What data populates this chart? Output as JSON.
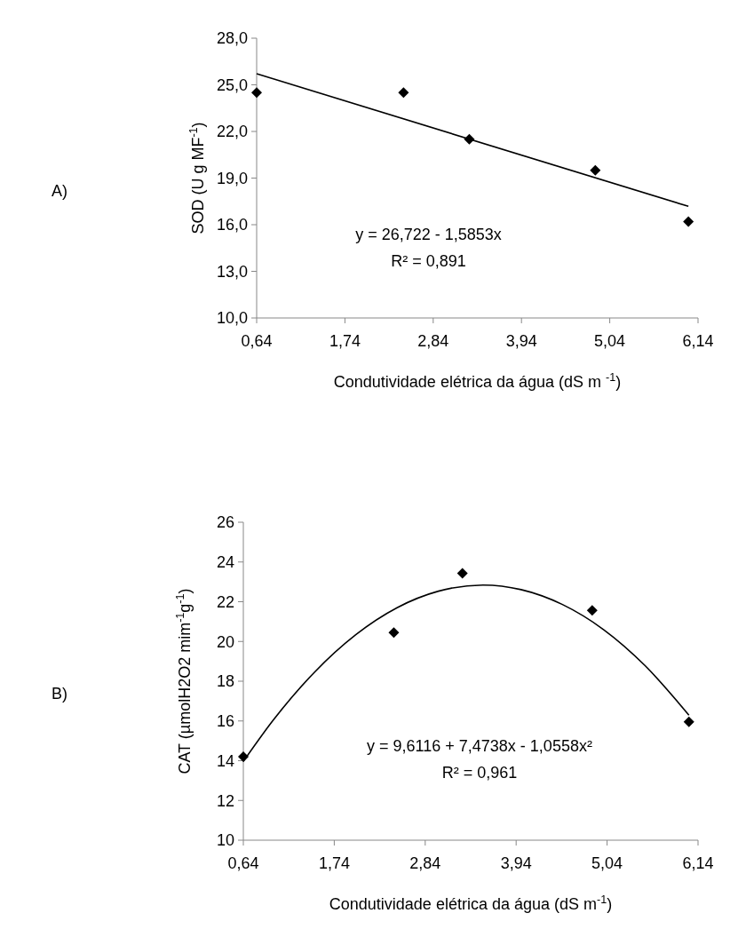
{
  "chart_data": [
    {
      "type": "scatter",
      "xlabel": "Condutividade elétrica da água (dS m $^{-1}$)",
      "ylabel": "SOD (U g MF$^{-1}$)",
      "annotations": [
        "A)",
        "y = 26,722  - 1,5853x",
        "R² = 0,891"
      ],
      "xlim": [
        0.64,
        6.14
      ],
      "xticks": [
        {
          "value": 0.64,
          "label": "0,64"
        },
        {
          "value": 1.74,
          "label": "1,74"
        },
        {
          "value": 2.84,
          "label": "2,84"
        },
        {
          "value": 3.94,
          "label": "3,94"
        },
        {
          "value": 5.04,
          "label": "5,04"
        },
        {
          "value": 6.14,
          "label": "6,14"
        }
      ],
      "ylim": [
        10,
        28
      ],
      "yticks": [
        {
          "value": 10,
          "label": "10,0"
        },
        {
          "value": 13,
          "label": "13,0"
        },
        {
          "value": 16,
          "label": "16,0"
        },
        {
          "value": 19,
          "label": "19,0"
        },
        {
          "value": 22,
          "label": "22,0"
        },
        {
          "value": 25,
          "label": "25,0"
        },
        {
          "value": 28,
          "label": "28,0"
        }
      ],
      "grid": false,
      "series": [
        {
          "color": "#000000",
          "marker": "diamond",
          "x": [
            0.64,
            2.47,
            3.29,
            4.86,
            6.02
          ],
          "values": [
            24.5,
            24.5,
            21.5,
            19.5,
            16.2
          ]
        },
        {
          "type": "line",
          "color": "#000000",
          "marker": "none",
          "line_style": "solid",
          "x": [
            0.64,
            6.02
          ],
          "values": [
            25.71,
            17.18
          ]
        }
      ]
    },
    {
      "type": "scatter",
      "xlabel": "Condutividade elétrica da água (dS m$^{-1}$)",
      "ylabel": "CAT (µmolH2O2 mim$^{-1}$g$^{-1}$)",
      "annotations": [
        "B)",
        "y = 9,6116 + 7,4738x - 1,0558x²",
        "R² = 0,961"
      ],
      "xlim": [
        0.64,
        6.14
      ],
      "xticks": [
        {
          "value": 0.64,
          "label": "0,64"
        },
        {
          "value": 1.74,
          "label": "1,74"
        },
        {
          "value": 2.84,
          "label": "2,84"
        },
        {
          "value": 3.94,
          "label": "3,94"
        },
        {
          "value": 5.04,
          "label": "5,04"
        },
        {
          "value": 6.14,
          "label": "6,14"
        }
      ],
      "ylim": [
        10,
        26
      ],
      "yticks": [
        10,
        12,
        14,
        16,
        18,
        20,
        22,
        24,
        26
      ],
      "grid": false,
      "series": [
        {
          "color": "#000000",
          "marker": "diamond",
          "x": [
            0.64,
            2.46,
            3.29,
            4.86,
            6.03
          ],
          "values": [
            14.2,
            20.45,
            23.43,
            21.56,
            15.96
          ]
        },
        {
          "type": "line",
          "color": "#000000",
          "marker": "none",
          "line_style": "solid",
          "x": [
            0.64,
            1.0,
            1.5,
            2.0,
            2.5,
            3.0,
            3.54,
            4.0,
            4.5,
            5.0,
            5.5,
            6.03
          ],
          "values": [
            13.96,
            16.03,
            18.45,
            20.34,
            21.7,
            22.53,
            22.84,
            22.61,
            21.86,
            20.59,
            18.78,
            16.29
          ]
        }
      ]
    }
  ]
}
